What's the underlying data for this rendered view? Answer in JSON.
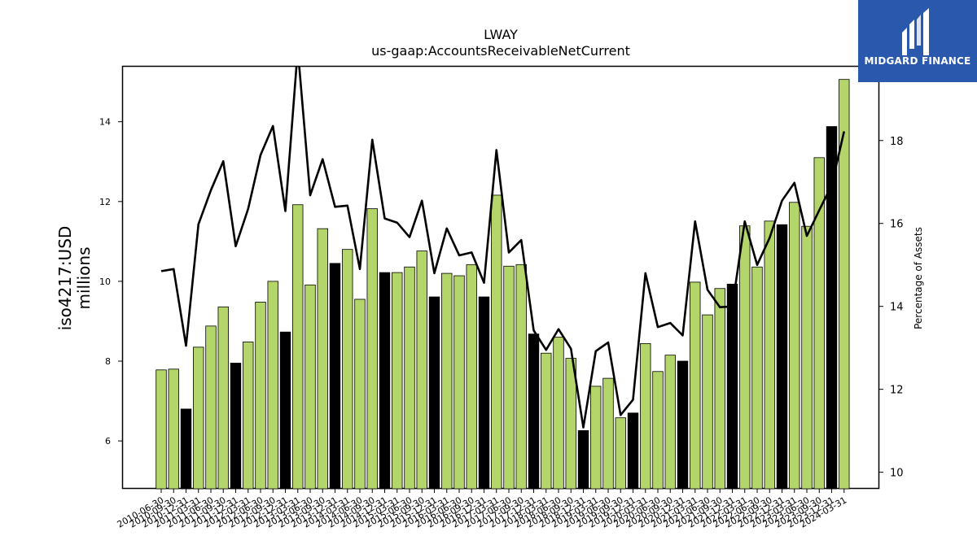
{
  "chart_data": {
    "type": "bar",
    "title": "LWAY",
    "subtitle": "us-gaap:AccountsReceivableNetCurrent",
    "ylabel_line1": "iso4217:USD",
    "ylabel_line2": "millions",
    "y2label": "Percentage of Assets",
    "ylim": [
      4.8,
      15.4
    ],
    "y2lim": [
      9.6,
      19.8
    ],
    "yticks": [
      6,
      8,
      10,
      12,
      14
    ],
    "y2ticks": [
      10,
      12,
      14,
      16,
      18
    ],
    "grid": false,
    "colors": {
      "bar": "#b3d56a",
      "highlight": "#000000",
      "line": "#000000"
    },
    "categories": [
      "2010-06-30",
      "2010-09-30",
      "2010-12-31",
      "2011-03-31",
      "2011-06-30",
      "2011-09-30",
      "2011-12-31",
      "2012-03-31",
      "2012-06-30",
      "2012-09-30",
      "2012-12-31",
      "2013-03-31",
      "2013-06-30",
      "2013-09-30",
      "2013-12-31",
      "2014-03-31",
      "2014-06-30",
      "2014-09-30",
      "2014-12-31",
      "2015-03-31",
      "2015-06-30",
      "2015-09-30",
      "2015-12-31",
      "2016-03-31",
      "2016-06-30",
      "2016-09-30",
      "2016-12-31",
      "2017-03-31",
      "2017-06-30",
      "2017-09-30",
      "2017-12-31",
      "2018-03-31",
      "2018-06-30",
      "2018-09-30",
      "2018-12-31",
      "2019-03-31",
      "2019-06-30",
      "2019-09-30",
      "2019-12-31",
      "2020-03-31",
      "2020-06-30",
      "2020-09-30",
      "2020-12-31",
      "2021-03-31",
      "2021-06-30",
      "2021-09-30",
      "2021-12-31",
      "2022-03-31",
      "2022-06-30",
      "2022-09-30",
      "2022-12-31",
      "2023-03-31",
      "2023-06-30",
      "2023-09-30",
      "2023-12-31",
      "2024-03-31"
    ],
    "xtick_labels": [
      "2010-06-30",
      "2010-09-30",
      "2010-12-31",
      "2011-03-31",
      "2011-06-30",
      "2011-09-30",
      "2011-12-31",
      "2012-03-31",
      "2012-06-30",
      "2012-09-30",
      "2012-12-31",
      "2013-03-31",
      "2013-06-30",
      "2013-09-30",
      "2013-12-31",
      "2014-03-31",
      "2014-06-30",
      "2014-09-30",
      "2014-12-31",
      "2015-03-31",
      "2015-06-30",
      "2015-09-30",
      "2015-12-31",
      "2016-03-31",
      "2016-06-30",
      "2016-09-30",
      "2016-12-31",
      "2017-03-31",
      "2017-06-30",
      "2017-09-30",
      "2017-12-31",
      "2018-03-31",
      "2018-06-30",
      "2018-09-30",
      "2018-12-31",
      "2019-03-31",
      "2019-06-30",
      "2019-09-30",
      "2019-12-31",
      "2020-03-31",
      "2020-06-30",
      "2020-09-30",
      "2020-12-31",
      "2021-03-31",
      "2021-06-30",
      "2021-09-30",
      "2021-12-31",
      "2022-03-31",
      "2022-06-30",
      "2022-09-30",
      "2022-12-31",
      "2023-03-31",
      "2023-06-30",
      "2023-09-30",
      "2023-12-31",
      "2024-03-31"
    ],
    "series": [
      {
        "type": "bar",
        "axis": "left",
        "values": [
          7.78,
          7.8,
          6.8,
          8.35,
          8.88,
          9.36,
          7.95,
          8.48,
          9.48,
          10.0,
          8.73,
          11.92,
          9.91,
          11.32,
          10.45,
          10.8,
          9.55,
          11.82,
          10.22,
          10.22,
          10.36,
          10.76,
          9.61,
          10.2,
          10.14,
          10.42,
          9.61,
          12.16,
          10.38,
          10.42,
          8.68,
          8.2,
          8.6,
          8.07,
          6.26,
          7.37,
          7.57,
          6.58,
          6.7,
          8.44,
          7.74,
          8.15,
          8.0,
          9.98,
          9.16,
          9.82,
          9.93,
          11.39,
          10.36,
          11.51,
          11.42,
          11.98,
          11.38,
          13.1,
          13.88,
          15.06
        ],
        "highlight": [
          false,
          false,
          true,
          false,
          false,
          false,
          true,
          false,
          false,
          false,
          true,
          false,
          false,
          false,
          true,
          false,
          false,
          false,
          true,
          false,
          false,
          false,
          true,
          false,
          false,
          false,
          true,
          false,
          false,
          false,
          true,
          false,
          false,
          false,
          true,
          false,
          false,
          false,
          true,
          false,
          false,
          false,
          true,
          false,
          false,
          false,
          true,
          false,
          false,
          false,
          true,
          false,
          false,
          false,
          true,
          false
        ]
      },
      {
        "type": "line",
        "axis": "right",
        "values": [
          14.85,
          14.9,
          13.05,
          15.98,
          16.8,
          17.5,
          15.45,
          16.35,
          17.65,
          18.35,
          16.3,
          20.2,
          16.68,
          17.55,
          16.4,
          16.43,
          14.9,
          18.02,
          16.12,
          16.02,
          15.67,
          16.55,
          14.8,
          15.88,
          15.23,
          15.3,
          14.57,
          17.77,
          15.3,
          15.6,
          13.42,
          12.95,
          13.45,
          12.98,
          11.08,
          12.92,
          13.13,
          11.38,
          11.75,
          14.8,
          13.5,
          13.6,
          13.3,
          16.05,
          14.4,
          13.98,
          14.0,
          16.05,
          15.0,
          15.65,
          16.55,
          16.98,
          15.7,
          16.32,
          16.92,
          18.22
        ]
      }
    ]
  },
  "logo": {
    "text": "MIDGARD FINANCE",
    "icon": "midgard-logo-icon"
  }
}
